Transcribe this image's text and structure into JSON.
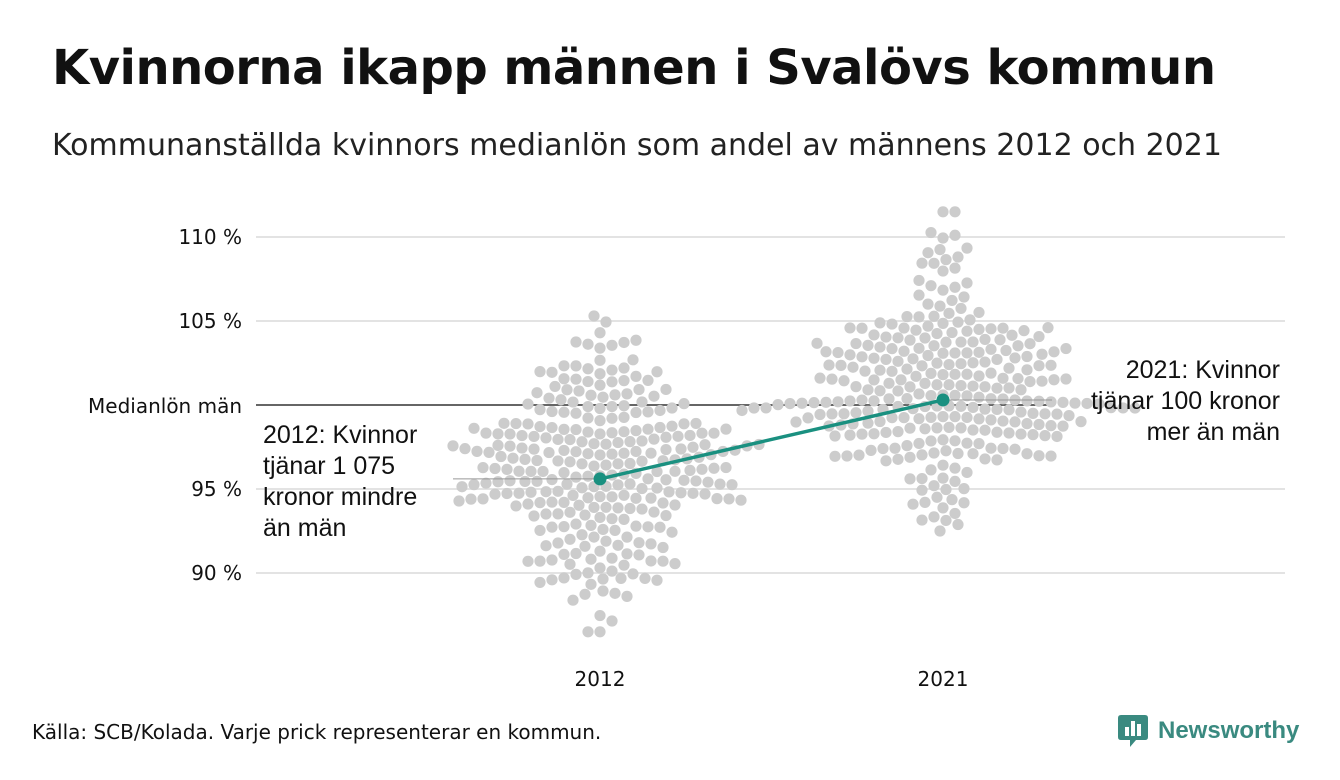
{
  "title": "Kvinnorna ikapp männen i Svalövs kommun",
  "subtitle": "Kommunanställda kvinnors medianlön som andel av männens 2012 och 2021",
  "source": "Källa: SCB/Kolada. Varje prick representerar en kommun.",
  "brand": {
    "name": "Newsworthy",
    "color": "#3a8a80",
    "icon": "newsworthy-logo-icon"
  },
  "colors": {
    "dots": "#cccccc",
    "highlight": "#1a9080",
    "grid": "#e3e3e3",
    "reference_line": "#333333"
  },
  "chart_data": {
    "type": "scatter",
    "subtype": "beeswarm",
    "title": "Kvinnorna ikapp männen i Svalövs kommun",
    "xlabel": "",
    "ylabel": "",
    "categories": [
      "2012",
      "2021"
    ],
    "ylim": [
      85.5,
      112
    ],
    "yticks": [
      {
        "value": 90,
        "label": "90 %"
      },
      {
        "value": 95,
        "label": "95 %"
      },
      {
        "value": 105,
        "label": "105 %"
      },
      {
        "value": 110,
        "label": "110 %"
      }
    ],
    "reference_line": {
      "value": 100,
      "label": "Medianlön män"
    },
    "grid": true,
    "dots_per_category": 290,
    "distribution": [
      {
        "category": "2012",
        "min": 86.5,
        "max": 105.3,
        "median": 95.8
      },
      {
        "category": "2021",
        "min": 92.5,
        "max": 111.5,
        "median": 100.6
      }
    ],
    "highlight": {
      "name": "Svalöv",
      "values": [
        {
          "x": "2012",
          "y": 95.6
        },
        {
          "x": "2021",
          "y": 100.3
        }
      ]
    },
    "annotations": [
      {
        "x": "2012",
        "y": 95.6,
        "lines": [
          "2012: Kvinnor",
          "tjänar 1 075",
          "kronor mindre",
          "än män"
        ]
      },
      {
        "x": "2021",
        "y": 100.3,
        "lines": [
          "2021: Kvinnor",
          "tjänar 100 kronor",
          "mer än män"
        ]
      }
    ]
  }
}
